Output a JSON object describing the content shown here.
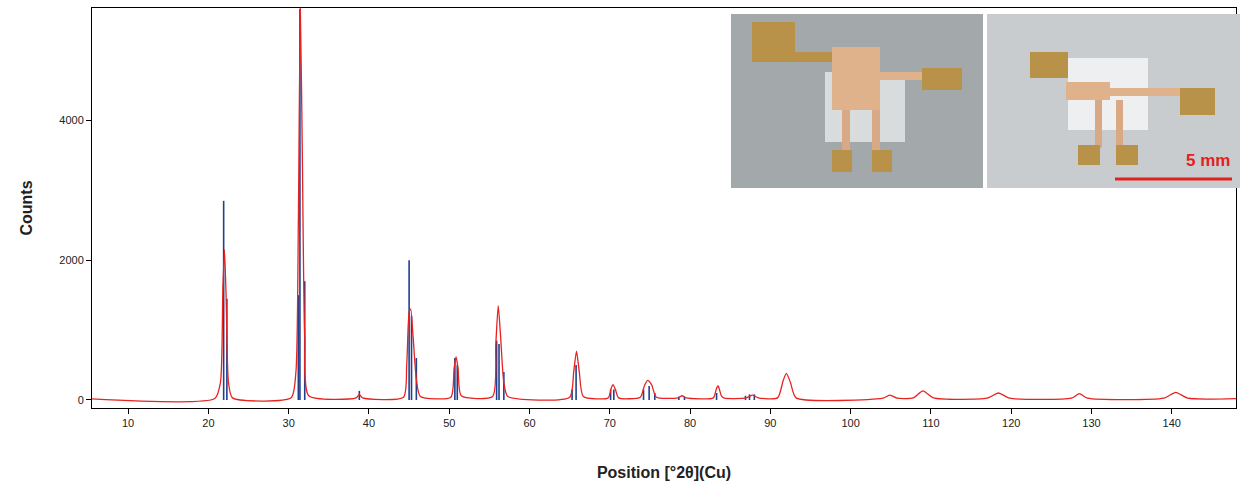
{
  "chart_data": {
    "type": "line",
    "x_label": "Position [°2θ](Cu)",
    "y_label": "Counts",
    "xlim": [
      5.5,
      148
    ],
    "xticks": [
      10,
      20,
      30,
      40,
      50,
      60,
      70,
      80,
      90,
      100,
      110,
      120,
      130,
      140
    ],
    "ylim": [
      -115,
      5610
    ],
    "yticks": [
      0,
      2000,
      4000
    ],
    "grid": false,
    "series": [
      {
        "type": "line",
        "color": "#e8221f",
        "x": [
          5.5,
          20.8,
          21.5,
          21.8,
          22.0,
          22.2,
          22.5,
          23.0,
          30.3,
          30.9,
          31.2,
          31.45,
          31.7,
          32.0,
          32.5,
          38.4,
          38.8,
          39.2,
          44.3,
          44.7,
          45.0,
          45.2,
          45.5,
          45.9,
          46.4,
          50.2,
          50.6,
          50.85,
          51.1,
          51.5,
          55.4,
          55.8,
          56.1,
          56.4,
          56.8,
          57.3,
          65.0,
          65.5,
          65.85,
          66.2,
          66.7,
          69.8,
          70.2,
          70.4,
          70.7,
          71.1,
          73.8,
          74.3,
          74.7,
          75.2,
          75.8,
          78.5,
          79.0,
          79.5,
          82.9,
          83.3,
          83.5,
          83.9,
          84.3,
          87.0,
          87.8,
          88.5,
          90.9,
          91.6,
          92.0,
          92.5,
          93.2,
          104.0,
          104.9,
          105.8,
          107.8,
          109.0,
          110.3,
          117.0,
          118.4,
          119.8,
          127.5,
          128.5,
          129.5,
          139.0,
          140.5,
          142.0,
          148.0
        ],
        "values": [
          15,
          20,
          250,
          1600,
          2150,
          1500,
          250,
          30,
          30,
          400,
          2500,
          5600,
          3500,
          900,
          60,
          30,
          80,
          30,
          40,
          500,
          1250,
          1300,
          900,
          300,
          50,
          40,
          450,
          620,
          450,
          60,
          50,
          800,
          1350,
          900,
          250,
          50,
          40,
          400,
          700,
          400,
          50,
          30,
          180,
          220,
          150,
          30,
          40,
          200,
          280,
          220,
          40,
          30,
          60,
          30,
          30,
          170,
          200,
          60,
          25,
          30,
          70,
          30,
          30,
          280,
          380,
          250,
          30,
          25,
          70,
          25,
          30,
          130,
          30,
          25,
          100,
          25,
          25,
          90,
          25,
          25,
          110,
          25,
          20
        ]
      },
      {
        "type": "stick",
        "color": "#1f3f8f",
        "x": [
          21.9,
          22.3,
          31.2,
          31.4,
          32.0,
          38.8,
          45.0,
          45.3,
          45.9,
          50.7,
          51.0,
          55.9,
          56.2,
          56.8,
          65.3,
          65.8,
          70.1,
          70.5,
          74.2,
          74.9,
          75.6,
          78.6,
          79.3,
          83.3,
          86.9,
          87.4,
          88.0
        ],
        "values": [
          2850,
          1450,
          1500,
          5600,
          1700,
          130,
          2000,
          1200,
          600,
          600,
          500,
          850,
          800,
          400,
          150,
          500,
          150,
          150,
          150,
          200,
          100,
          50,
          50,
          100,
          60,
          80,
          80
        ]
      }
    ],
    "annotations": [
      {
        "text": "5 mm"
      }
    ]
  }
}
